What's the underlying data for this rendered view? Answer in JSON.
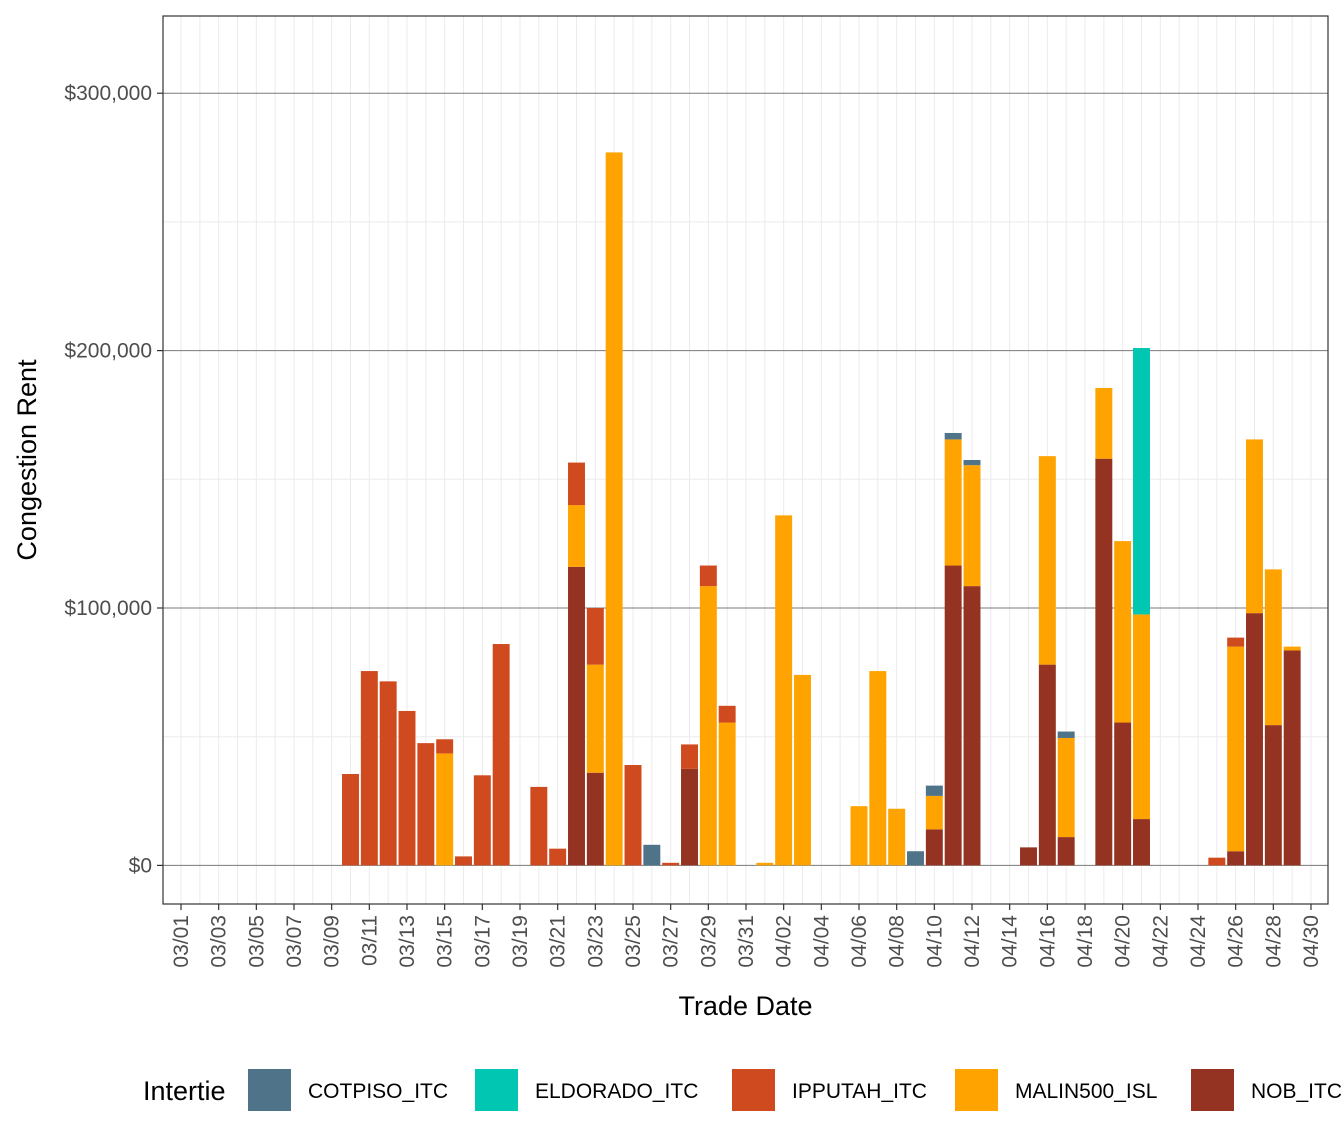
{
  "chart_data": {
    "type": "bar",
    "stacked": true,
    "xlabel": "Trade Date",
    "ylabel": "Congestion Rent",
    "ylim": [
      -15000,
      330000
    ],
    "y_ticks": [
      0,
      100000,
      200000,
      300000
    ],
    "y_tick_labels": [
      "$0",
      "$100,000",
      "$200,000",
      "$300,000"
    ],
    "x_tick_labels": [
      "03/01",
      "03/03",
      "03/05",
      "03/07",
      "03/09",
      "03/11",
      "03/13",
      "03/15",
      "03/17",
      "03/19",
      "03/21",
      "03/23",
      "03/25",
      "03/27",
      "03/29",
      "03/31",
      "04/02",
      "04/04",
      "04/06",
      "04/08",
      "04/10",
      "04/12",
      "04/14",
      "04/16",
      "04/18",
      "04/20",
      "04/22",
      "04/24",
      "04/26",
      "04/28",
      "04/30"
    ],
    "grid": true,
    "legend": {
      "title": "Intertie",
      "position": "bottom"
    },
    "categories": [
      "03/01",
      "03/02",
      "03/03",
      "03/04",
      "03/05",
      "03/06",
      "03/07",
      "03/08",
      "03/09",
      "03/10",
      "03/11",
      "03/12",
      "03/13",
      "03/14",
      "03/15",
      "03/16",
      "03/17",
      "03/18",
      "03/19",
      "03/20",
      "03/21",
      "03/22",
      "03/23",
      "03/24",
      "03/25",
      "03/26",
      "03/27",
      "03/28",
      "03/29",
      "03/30",
      "03/31",
      "04/01",
      "04/02",
      "04/03",
      "04/04",
      "04/05",
      "04/06",
      "04/07",
      "04/08",
      "04/09",
      "04/10",
      "04/11",
      "04/12",
      "04/13",
      "04/14",
      "04/15",
      "04/16",
      "04/17",
      "04/18",
      "04/19",
      "04/20",
      "04/21",
      "04/22",
      "04/23",
      "04/24",
      "04/25",
      "04/26",
      "04/27",
      "04/28",
      "04/29",
      "04/30"
    ],
    "series": [
      {
        "name": "NOB_ITC",
        "color": "#943321",
        "values": [
          0,
          0,
          0,
          0,
          0,
          0,
          0,
          0,
          0,
          0,
          0,
          0,
          0,
          0,
          0,
          0,
          0,
          0,
          0,
          0,
          0,
          116000,
          36000,
          0,
          0,
          0,
          0,
          37500,
          0,
          0,
          0,
          0,
          0,
          0,
          0,
          0,
          0,
          0,
          0,
          0,
          14000,
          116500,
          108500,
          0,
          0,
          7000,
          78000,
          11000,
          0,
          158000,
          55500,
          18000,
          0,
          0,
          0,
          0,
          5500,
          98000,
          54500,
          83500,
          0
        ]
      },
      {
        "name": "MALIN500_ISL",
        "color": "#FFA300",
        "values": [
          0,
          0,
          0,
          0,
          0,
          0,
          0,
          0,
          0,
          0,
          0,
          0,
          0,
          0,
          43500,
          0,
          0,
          0,
          0,
          0,
          0,
          24000,
          42000,
          277000,
          0,
          0,
          0,
          0,
          108500,
          55500,
          0,
          1000,
          136000,
          74000,
          0,
          0,
          23000,
          75500,
          22000,
          0,
          13000,
          49000,
          47000,
          0,
          0,
          0,
          81000,
          38500,
          0,
          27500,
          70500,
          79500,
          0,
          0,
          0,
          0,
          79500,
          67500,
          60500,
          1500,
          0
        ]
      },
      {
        "name": "IPPUTAH_ITC",
        "color": "#D04A1F",
        "values": [
          0,
          0,
          0,
          0,
          0,
          0,
          0,
          0,
          0,
          35500,
          75500,
          71500,
          60000,
          47500,
          5500,
          3500,
          35000,
          86000,
          0,
          30500,
          6500,
          16500,
          22000,
          0,
          39000,
          0,
          1000,
          9500,
          8000,
          6500,
          0,
          0,
          0,
          0,
          0,
          0,
          0,
          0,
          0,
          0,
          0,
          0,
          0,
          0,
          0,
          0,
          0,
          0,
          0,
          0,
          0,
          0,
          0,
          0,
          0,
          3000,
          3500,
          0,
          0,
          0,
          0
        ]
      },
      {
        "name": "ELDORADO_ITC",
        "color": "#00C6B2",
        "values": [
          0,
          0,
          0,
          0,
          0,
          0,
          0,
          0,
          0,
          0,
          0,
          0,
          0,
          0,
          0,
          0,
          0,
          0,
          0,
          0,
          0,
          0,
          0,
          0,
          0,
          0,
          0,
          0,
          0,
          0,
          0,
          0,
          0,
          0,
          0,
          0,
          0,
          0,
          0,
          0,
          0,
          0,
          0,
          0,
          0,
          0,
          0,
          0,
          0,
          0,
          0,
          103500,
          0,
          0,
          0,
          0,
          0,
          0,
          0,
          0,
          0
        ]
      },
      {
        "name": "COTPISO_ITC",
        "color": "#4F7489",
        "values": [
          0,
          0,
          0,
          0,
          0,
          0,
          0,
          0,
          0,
          0,
          0,
          0,
          0,
          0,
          0,
          0,
          0,
          0,
          0,
          0,
          0,
          0,
          0,
          0,
          0,
          8000,
          0,
          0,
          0,
          0,
          0,
          0,
          0,
          0,
          0,
          0,
          0,
          0,
          0,
          5500,
          4000,
          2500,
          2000,
          0,
          0,
          0,
          0,
          2500,
          0,
          0,
          0,
          0,
          0,
          0,
          0,
          0,
          0,
          0,
          0,
          0,
          0
        ]
      }
    ],
    "legend_order": [
      "COTPISO_ITC",
      "ELDORADO_ITC",
      "IPPUTAH_ITC",
      "MALIN500_ISL",
      "NOB_ITC"
    ]
  }
}
